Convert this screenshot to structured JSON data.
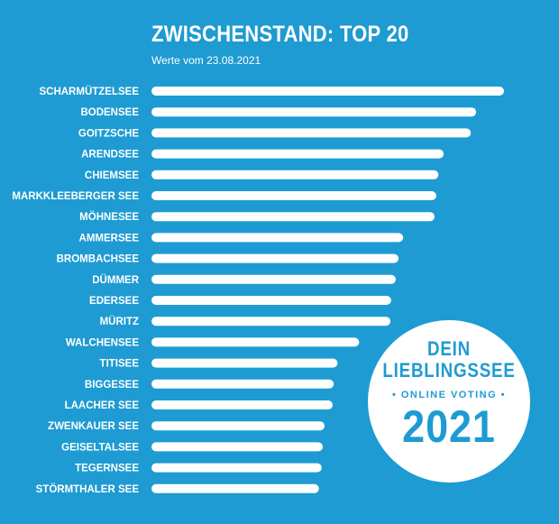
{
  "chart_data": {
    "type": "bar",
    "orientation": "horizontal",
    "title": "ZWISCHENSTAND: TOP 20",
    "subtitle": "Werte vom 23.08.2021",
    "categories": [
      "SCHARMÜTZELSEE",
      "BODENSEE",
      "GOITZSCHE",
      "ARENDSEE",
      "CHIEMSEE",
      "MARKKLEEBERGER SEE",
      "MÖHNESEE",
      "AMMERSEE",
      "BROMBACHSEE",
      "DÜMMER",
      "EDERSEE",
      "MÜRITZ",
      "WALCHENSEE",
      "TITISEE",
      "BIGGESEE",
      "LAACHER SEE",
      "ZWENKAUER SEE",
      "GEISELTALSEE",
      "TEGERNSEE",
      "STÖRMTHALER SEE"
    ],
    "values": [
      100,
      92.1,
      90.6,
      82.9,
      81.4,
      80.8,
      80.3,
      71.4,
      70.1,
      69.3,
      68.0,
      67.8,
      58.9,
      52.8,
      51.7,
      51.4,
      49.1,
      48.6,
      48.3,
      47.5
    ],
    "xaxis_visible": false,
    "grid": false,
    "bar_color": "#ffffff",
    "background_color": "#1e9bd2"
  },
  "badge": {
    "line1": "DEIN",
    "line2": "LIEBLINGSSEE",
    "tagline": "• ONLINE VOTING •",
    "year": "2021"
  }
}
